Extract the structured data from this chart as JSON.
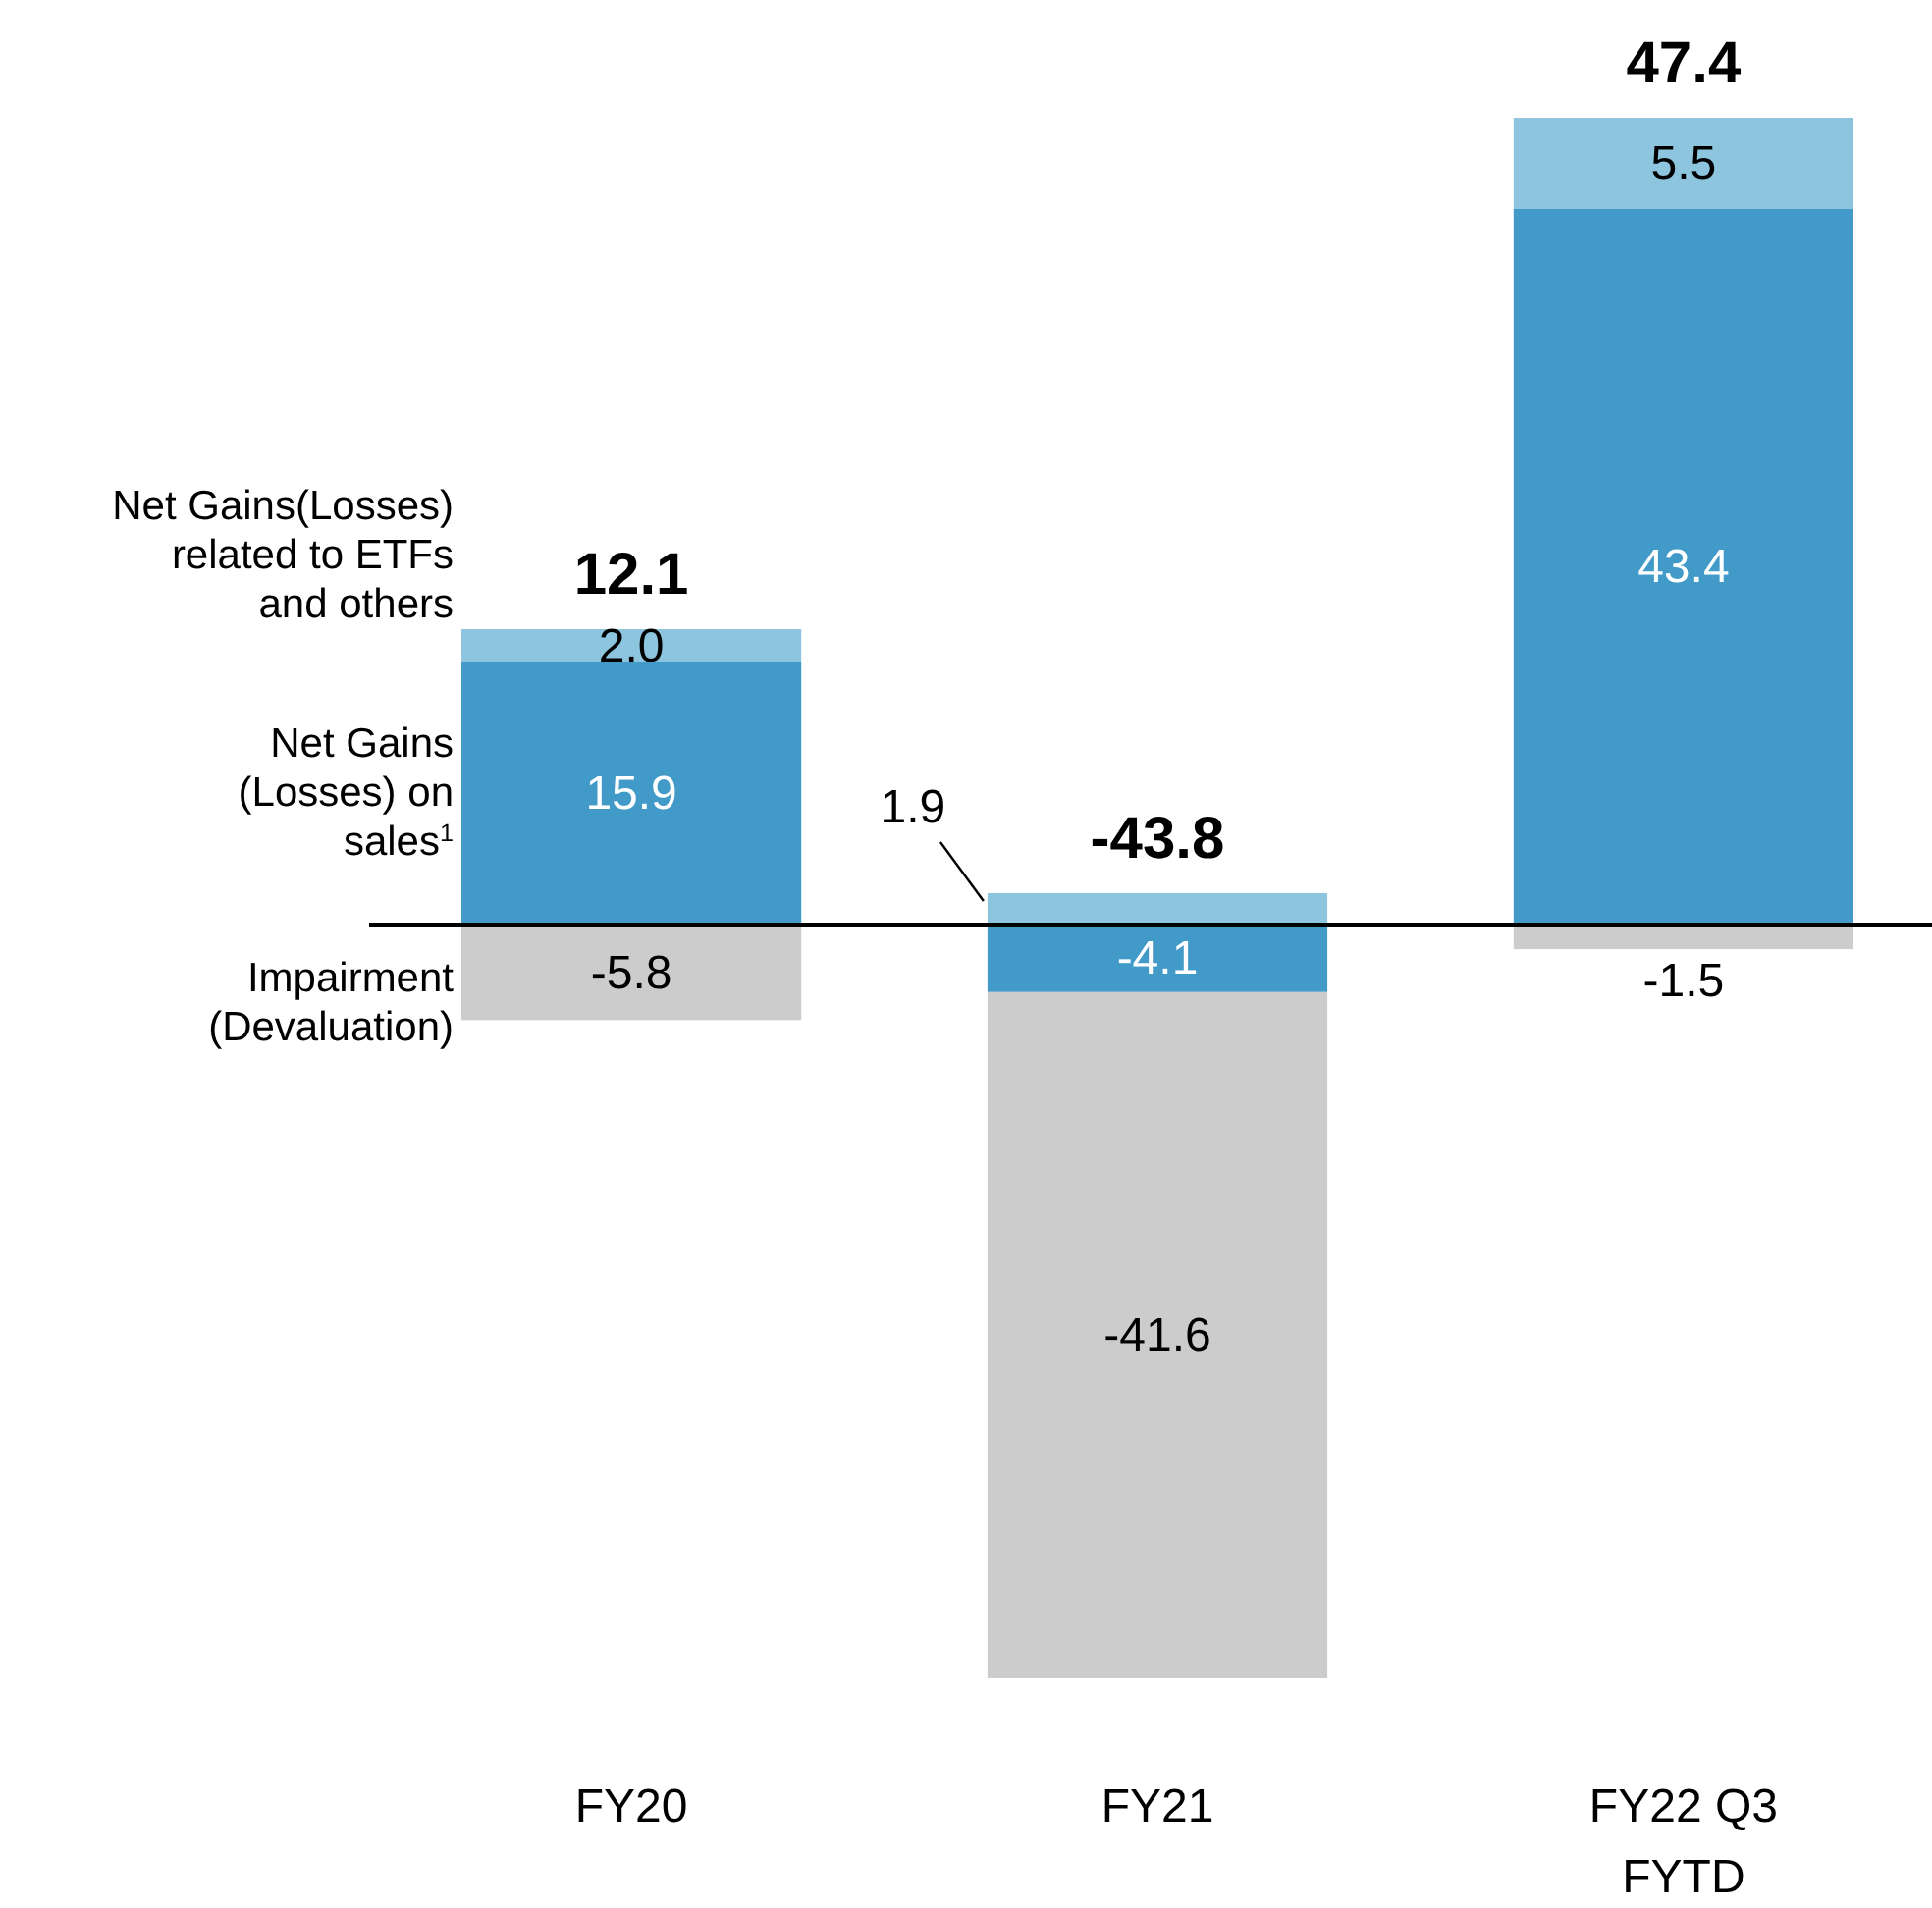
{
  "chart_data": {
    "type": "bar",
    "stacked": true,
    "categories": [
      "FY20",
      "FY21",
      "FY22 Q3 FYTD"
    ],
    "series": [
      {
        "name": "Net Gains (Losses) on sales$^{1}$",
        "color": "#419ac8",
        "values": [
          15.9,
          -4.1,
          43.4
        ],
        "value_labels": [
          "15.9",
          "-4.1",
          "43.4"
        ]
      },
      {
        "name": "Net Gains(Losses) related to ETFs and others",
        "color": "#8dc4de",
        "values": [
          2.0,
          1.9,
          5.5
        ],
        "value_labels": [
          "2.0",
          "1.9",
          "5.5"
        ]
      },
      {
        "name": "Impairment (Devaluation)",
        "color": "#cccccc",
        "values": [
          -5.8,
          -41.6,
          -1.5
        ],
        "value_labels": [
          "-5.8",
          "-41.6",
          "-1.5"
        ]
      }
    ],
    "totals": [
      "12.1",
      "-43.8",
      "47.4"
    ]
  }
}
